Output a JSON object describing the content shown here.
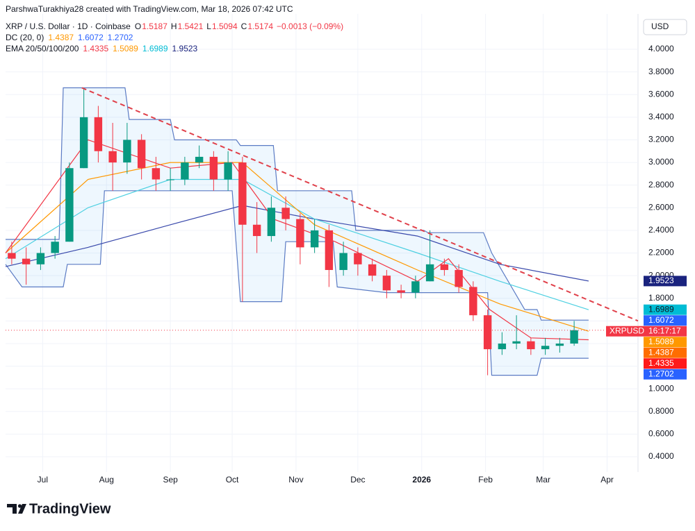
{
  "header": {
    "credit": "ParshwaTurakhiya28 created with TradingView.com, Mar 18, 2026 07:42 UTC",
    "currency": "USD",
    "brand": "TradingView"
  },
  "chart_data": {
    "type": "candlestick",
    "title": "XRP / U.S. Dollar · 1D · Coinbase",
    "ohlc": {
      "labels": [
        "O",
        "H",
        "L",
        "C"
      ],
      "values": [
        1.5187,
        1.5421,
        1.5094,
        1.5174
      ],
      "change": "−0.0013 (−0.09%)"
    },
    "indicators": [
      {
        "name": "DC (20, 0)",
        "values": [
          1.4387,
          1.6072,
          1.2702
        ],
        "colors": [
          "#ff9800",
          "#2962ff",
          "#2962ff"
        ]
      },
      {
        "name": "EMA 20/50/100/200",
        "values": [
          1.4335,
          1.5089,
          1.6989,
          1.9523
        ],
        "colors": [
          "#f23645",
          "#ff9800",
          "#00bcd4",
          "#1a237e"
        ]
      }
    ],
    "symbol": "XRPUSD",
    "countdown": "16:17:17",
    "xlim": [
      0,
      307
    ],
    "xticks": [
      {
        "value": 18,
        "label": "Jul"
      },
      {
        "value": 49,
        "label": "Aug"
      },
      {
        "value": 80,
        "label": "Sep"
      },
      {
        "value": 110,
        "label": "Oct"
      },
      {
        "value": 141,
        "label": "Nov"
      },
      {
        "value": 171,
        "label": "Dec"
      },
      {
        "value": 202,
        "label": "2026"
      },
      {
        "value": 233,
        "label": "Feb"
      },
      {
        "value": 261,
        "label": "Mar"
      },
      {
        "value": 292,
        "label": "Apr"
      }
    ],
    "ylim": [
      0.265,
      4.313
    ],
    "yticks": [
      {
        "value": 0.4,
        "label": "0.4000"
      },
      {
        "value": 0.6,
        "label": "0.6000"
      },
      {
        "value": 0.8,
        "label": "0.8000"
      },
      {
        "value": 1,
        "label": "1.0000"
      },
      {
        "value": 1.2,
        "label": "1.2000"
      },
      {
        "value": 1.4,
        "label": "1.4000"
      },
      {
        "value": 1.6,
        "label": "1.6000"
      },
      {
        "value": 1.8,
        "label": "1.8000"
      },
      {
        "value": 2,
        "label": "2.0000"
      },
      {
        "value": 2.2,
        "label": "2.2000"
      },
      {
        "value": 2.4,
        "label": "2.4000"
      },
      {
        "value": 2.6,
        "label": "2.6000"
      },
      {
        "value": 2.8,
        "label": "2.8000"
      },
      {
        "value": 3,
        "label": "3.0000"
      },
      {
        "value": 3.2,
        "label": "3.2000"
      },
      {
        "value": 3.4,
        "label": "3.4000"
      },
      {
        "value": 3.6,
        "label": "3.6000"
      },
      {
        "value": 3.8,
        "label": "3.8000"
      },
      {
        "value": 4,
        "label": "4.0000"
      }
    ],
    "grid": true,
    "up_color": "#089981",
    "down_color": "#f23645",
    "candles": {
      "x": [
        3,
        10,
        17,
        24,
        31,
        38,
        45,
        52,
        59,
        66,
        73,
        80,
        87,
        94,
        101,
        108,
        115,
        122,
        129,
        136,
        143,
        150,
        157,
        164,
        171,
        178,
        185,
        192,
        199,
        206,
        213,
        220,
        227,
        234,
        241,
        248,
        255,
        262,
        269,
        276
      ],
      "open": [
        2.2,
        2.15,
        2.1,
        2.2,
        2.3,
        2.95,
        3.4,
        3.1,
        3.0,
        3.2,
        2.95,
        2.85,
        2.85,
        3.0,
        3.05,
        2.85,
        3.0,
        2.45,
        2.35,
        2.6,
        2.5,
        2.25,
        2.4,
        2.05,
        2.2,
        2.1,
        2.0,
        1.87,
        1.85,
        1.95,
        2.1,
        2.05,
        1.9,
        1.65,
        1.35,
        1.4,
        1.42,
        1.35,
        1.38,
        1.4
      ],
      "high": [
        2.3,
        2.25,
        2.25,
        2.35,
        3.0,
        3.66,
        3.5,
        3.35,
        3.35,
        3.25,
        3.05,
        2.95,
        3.05,
        3.15,
        3.1,
        3.1,
        3.05,
        2.65,
        2.7,
        2.7,
        2.55,
        2.5,
        2.45,
        2.3,
        2.25,
        2.15,
        2.05,
        1.92,
        2.0,
        2.4,
        2.15,
        2.1,
        1.95,
        1.7,
        1.5,
        1.65,
        1.45,
        1.45,
        1.45,
        1.6
      ],
      "low": [
        2.1,
        1.92,
        2.05,
        2.15,
        2.3,
        2.95,
        3.0,
        2.75,
        2.9,
        2.85,
        2.75,
        2.75,
        2.8,
        2.95,
        2.75,
        2.75,
        1.77,
        2.2,
        2.3,
        2.4,
        2.1,
        2.2,
        1.9,
        2.0,
        2.0,
        1.95,
        1.8,
        1.8,
        1.8,
        1.95,
        2.0,
        1.85,
        1.6,
        1.12,
        1.3,
        1.35,
        1.3,
        1.3,
        1.32,
        1.38
      ],
      "close": [
        2.15,
        2.1,
        2.2,
        2.3,
        2.95,
        3.4,
        3.1,
        3.0,
        3.2,
        2.95,
        2.85,
        2.85,
        3.0,
        3.05,
        2.85,
        3.0,
        2.45,
        2.35,
        2.6,
        2.5,
        2.25,
        2.4,
        2.05,
        2.2,
        2.1,
        2.0,
        1.87,
        1.85,
        1.95,
        2.1,
        2.05,
        1.9,
        1.65,
        1.35,
        1.4,
        1.42,
        1.35,
        1.38,
        1.4,
        1.5174
      ]
    },
    "series": [
      {
        "color": "#3949ab",
        "x": [
          0,
          40,
          80,
          115,
          150,
          200,
          240,
          283
        ],
        "values": [
          2.08,
          2.25,
          2.45,
          2.62,
          2.5,
          2.35,
          2.1,
          1.9523
        ]
      },
      {
        "color": "#4dd0e1",
        "x": [
          0,
          40,
          80,
          115,
          150,
          200,
          240,
          283
        ],
        "values": [
          2.15,
          2.6,
          2.85,
          2.85,
          2.5,
          2.2,
          1.95,
          1.6989
        ]
      },
      {
        "color": "#ff9800",
        "x": [
          0,
          40,
          80,
          115,
          150,
          200,
          240,
          283
        ],
        "values": [
          2.2,
          2.85,
          3.0,
          3.0,
          2.45,
          2.05,
          1.75,
          1.5089
        ]
      },
      {
        "color": "#f23645",
        "x": [
          0,
          40,
          80,
          110,
          130,
          160,
          200,
          215,
          235,
          255,
          283
        ],
        "values": [
          2.2,
          3.2,
          2.95,
          3.0,
          2.5,
          2.3,
          1.95,
          2.15,
          1.7,
          1.45,
          1.4335
        ]
      }
    ],
    "channel": {
      "color": "#5b7bc4",
      "fill": "rgba(33,150,243,0.08)",
      "upper": {
        "x": [
          0,
          26,
          28,
          58,
          60,
          80,
          82,
          112,
          114,
          130,
          132,
          168,
          170,
          203,
          205,
          232,
          236,
          252,
          258,
          260,
          283
        ],
        "values": [
          2.32,
          2.32,
          3.66,
          3.66,
          3.38,
          3.38,
          3.2,
          3.2,
          3.15,
          3.15,
          2.75,
          2.75,
          2.4,
          2.4,
          2.38,
          2.38,
          2.2,
          1.7,
          1.7,
          1.6072,
          1.6072
        ]
      },
      "lower": {
        "x": [
          0,
          8,
          28,
          30,
          46,
          48,
          110,
          114,
          134,
          136,
          159,
          161,
          185,
          234,
          236,
          258,
          260,
          283
        ],
        "values": [
          2.1,
          1.9,
          1.9,
          2.1,
          2.1,
          2.75,
          2.75,
          1.77,
          1.77,
          2.3,
          2.3,
          1.9,
          1.85,
          1.85,
          1.12,
          1.12,
          1.27,
          1.2702
        ]
      }
    },
    "trendline": {
      "color": "#e0404a",
      "x": [
        37,
        307
      ],
      "values": [
        3.66,
        1.6
      ]
    }
  }
}
